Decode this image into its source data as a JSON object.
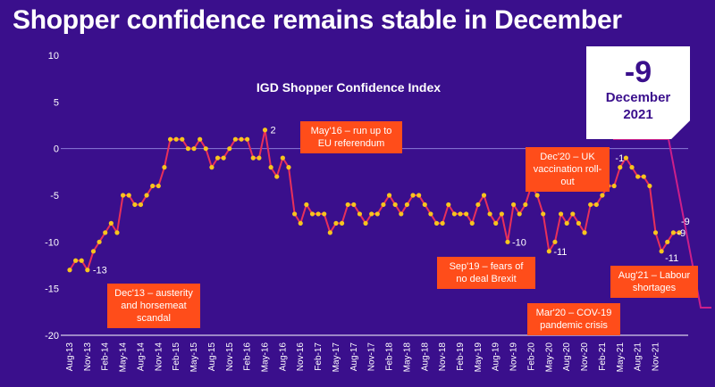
{
  "headline": "Shopper confidence remains stable in December",
  "badge": {
    "value": "-9",
    "month": "December",
    "year": "2021"
  },
  "colors": {
    "background": "#3a0f8c",
    "line": "#e8305a",
    "marker": "#f7c51e",
    "annotation": "#ff4d1a",
    "zero_line": "#8a7bd8",
    "text": "#ffffff"
  },
  "chart_data": {
    "type": "line",
    "title": "IGD Shopper Confidence Index",
    "ylim": [
      -20,
      10
    ],
    "yticks": [
      10,
      5,
      0,
      -5,
      -10,
      -15,
      -20
    ],
    "xlabels": [
      "Aug-13",
      "Nov-13",
      "Feb-14",
      "May-14",
      "Aug-14",
      "Nov-14",
      "Feb-15",
      "May-15",
      "Aug-15",
      "Nov-15",
      "Feb-16",
      "May-16",
      "Aug-16",
      "Nov-16",
      "Feb-17",
      "May-17",
      "Aug-17",
      "Nov-17",
      "Feb-18",
      "May-18",
      "Aug-18",
      "Nov-18",
      "Feb-19",
      "May-19",
      "Aug-19",
      "Nov-19",
      "Feb-20",
      "May-20",
      "Aug-20",
      "Nov-20",
      "Feb-21",
      "May-21",
      "Aug-21",
      "Nov-21"
    ],
    "series": [
      {
        "values": [
          -13,
          -12,
          -12,
          -13,
          -11,
          -10,
          -9,
          -8,
          -9,
          -5,
          -5,
          -6,
          -6,
          -5,
          -4,
          -4,
          -2,
          1,
          1,
          1,
          0,
          0,
          1,
          0,
          -2,
          -1,
          -1,
          0,
          1,
          1,
          1,
          -1,
          -1,
          2,
          -2,
          -3,
          -1,
          -2,
          -7,
          -8,
          -6,
          -7,
          -7,
          -7,
          -9,
          -8,
          -8,
          -6,
          -6,
          -7,
          -8,
          -7,
          -7,
          -6,
          -5,
          -6,
          -7,
          -6,
          -5,
          -5,
          -6,
          -7,
          -8,
          -8,
          -6,
          -7,
          -7,
          -7,
          -8,
          -6,
          -5,
          -7,
          -8,
          -7,
          -10,
          -6,
          -7,
          -6,
          -4,
          -5,
          -7,
          -11,
          -10,
          -7,
          -8,
          -7,
          -8,
          -9,
          -6,
          -6,
          -5,
          -4,
          -4,
          -2,
          -1,
          -2,
          -3,
          -3,
          -4,
          -9,
          -11,
          -10,
          -9,
          -9
        ]
      }
    ],
    "value_labels": [
      "-13",
      "2",
      "-10",
      "-11",
      "-1",
      "-11",
      "-9",
      "-9"
    ],
    "annotations": [
      "Dec'13 – austerity and horsemeat scandal",
      "May'16 – run up to EU referendum",
      "Sep'19 – fears of no deal Brexit",
      "Mar'20 – COV-19 pandemic crisis",
      "Dec'20 – UK vaccination roll-out",
      "Aug'21 – Labour shortages"
    ]
  }
}
